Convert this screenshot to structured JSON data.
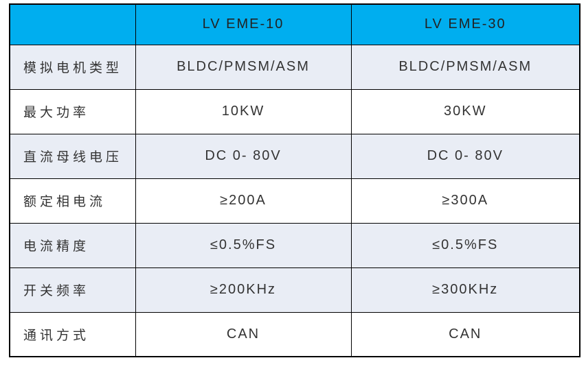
{
  "chart_data": {
    "type": "table",
    "columns": [
      "",
      "LV EME-10",
      "LV EME-30"
    ],
    "rows": [
      [
        "模拟电机类型",
        "BLDC/PMSM/ASM",
        "BLDC/PMSM/ASM"
      ],
      [
        "最大功率",
        "10KW",
        "30KW"
      ],
      [
        "直流母线电压",
        "DC 0- 80V",
        "DC 0- 80V"
      ],
      [
        "额定相电流",
        "≥200A",
        "≥300A"
      ],
      [
        "电流精度",
        "≤0.5%FS",
        "≤0.5%FS"
      ],
      [
        "开关频率",
        "≥200KHz",
        "≥300KHz"
      ],
      [
        "通讯方式",
        "CAN",
        "CAN"
      ]
    ]
  },
  "table": {
    "header": [
      "",
      "LV EME-10",
      "LV EME-30"
    ],
    "rows": [
      {
        "cells": [
          "模拟电机类型",
          "BLDC/PMSM/ASM",
          "BLDC/PMSM/ASM"
        ],
        "shaded": true
      },
      {
        "cells": [
          "最大功率",
          "10KW",
          "30KW"
        ],
        "shaded": false
      },
      {
        "cells": [
          "直流母线电压",
          "DC 0- 80V",
          "DC 0- 80V"
        ],
        "shaded": true
      },
      {
        "cells": [
          "额定相电流",
          "≥200A",
          "≥300A"
        ],
        "shaded": false
      },
      {
        "cells": [
          "电流精度",
          "≤0.5%FS",
          "≤0.5%FS"
        ],
        "shaded": true
      },
      {
        "cells": [
          "开关频率",
          "≥200KHz",
          "≥300KHz"
        ],
        "shaded": true
      },
      {
        "cells": [
          "通讯方式",
          "CAN",
          "CAN"
        ],
        "shaded": false
      }
    ]
  },
  "colors": {
    "header_bg": "#00AEEF",
    "shaded_row_bg": "#E9EDF5",
    "border": "#000000",
    "text": "#333333"
  }
}
